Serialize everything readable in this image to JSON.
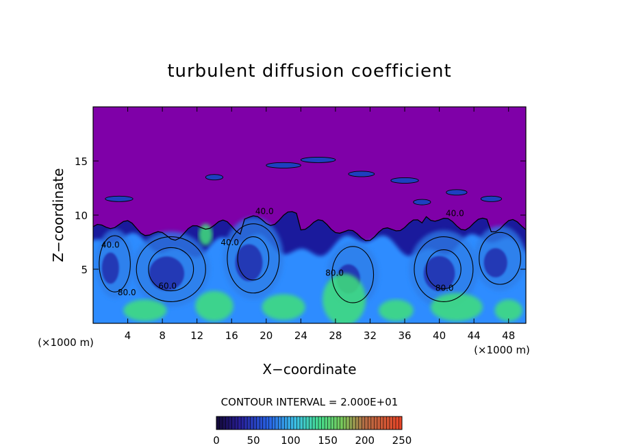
{
  "chart_data": {
    "type": "heatmap",
    "title": "turbulent diffusion coefficient",
    "xlabel": "X−coordinate",
    "ylabel": "Z−coordinate",
    "x_unit": "(×1000 m)",
    "z_unit": "(×1000 m)",
    "xlim": [
      0,
      50
    ],
    "ylim": [
      0,
      20
    ],
    "xticks": [
      4,
      8,
      12,
      16,
      20,
      24,
      28,
      32,
      36,
      40,
      44,
      48
    ],
    "yticks": [
      5,
      10,
      15
    ],
    "contour_interval_text": "CONTOUR INTERVAL = 2.000E+01",
    "contour_interval": 20,
    "contour_labels": [
      {
        "x": 19.8,
        "y": 10.1,
        "text": "40.0"
      },
      {
        "x": 41.8,
        "y": 9.9,
        "text": "40.0"
      },
      {
        "x": 2.0,
        "y": 7.0,
        "text": "40.0"
      },
      {
        "x": 3.9,
        "y": 2.6,
        "text": "80.0"
      },
      {
        "x": 8.6,
        "y": 3.2,
        "text": "60.0"
      },
      {
        "x": 15.8,
        "y": 7.2,
        "text": "40.0"
      },
      {
        "x": 27.9,
        "y": 4.4,
        "text": "80.0"
      },
      {
        "x": 40.6,
        "y": 3.0,
        "text": "80.0"
      }
    ],
    "colorbar": {
      "min": 0,
      "max": 250,
      "tick_labels": [
        "0",
        "50",
        "100",
        "150",
        "200",
        "250"
      ],
      "tick_values": [
        0,
        50,
        100,
        150,
        200,
        250
      ]
    },
    "colors": {
      "background_field": "#7f00a8",
      "low": "#1a1a9c",
      "mid": "#2f8cff",
      "high": "#3fe07a",
      "max": "#ff4a2a"
    }
  }
}
